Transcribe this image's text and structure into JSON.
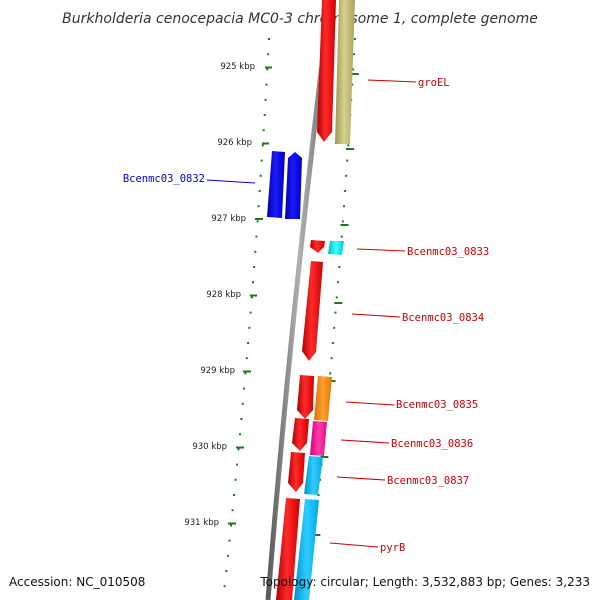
{
  "title": "Burkholderia cenocepacia MC0-3 chromosome 1, complete genome",
  "kbp_ticks": [
    {
      "label": "925 kbp"
    },
    {
      "label": "926 kbp"
    },
    {
      "label": "927 kbp"
    },
    {
      "label": "928 kbp"
    },
    {
      "label": "929 kbp"
    },
    {
      "label": "930 kbp"
    },
    {
      "label": "931 kbp"
    }
  ],
  "gene_labels": {
    "groEL": "groEL",
    "Bcenmc03_0832": "Bcenmc03_0832",
    "Bcenmc03_0833": "Bcenmc03_0833",
    "Bcenmc03_0834": "Bcenmc03_0834",
    "Bcenmc03_0835": "Bcenmc03_0835",
    "Bcenmc03_0836": "Bcenmc03_0836",
    "Bcenmc03_0837": "Bcenmc03_0837",
    "pyrB": "pyrB"
  },
  "footer": {
    "accession": "Accession: NC_010508",
    "topology": "Topology: circular; Length: 3,532,883 bp; Genes: 3,233"
  },
  "colors": {
    "backbone": "#888888",
    "tick_green": "#1a7a1a",
    "gene_red": "#ff0000",
    "gene_blue": "#0000ee",
    "gene_olive": "#bdb76b",
    "gene_cyan": "#00e5ee",
    "gene_orange": "#ff8c00",
    "gene_magenta": "#ff1493",
    "gene_skyblue": "#00bfff",
    "label_red": "#cc0000",
    "label_blue": "#0000cc"
  }
}
